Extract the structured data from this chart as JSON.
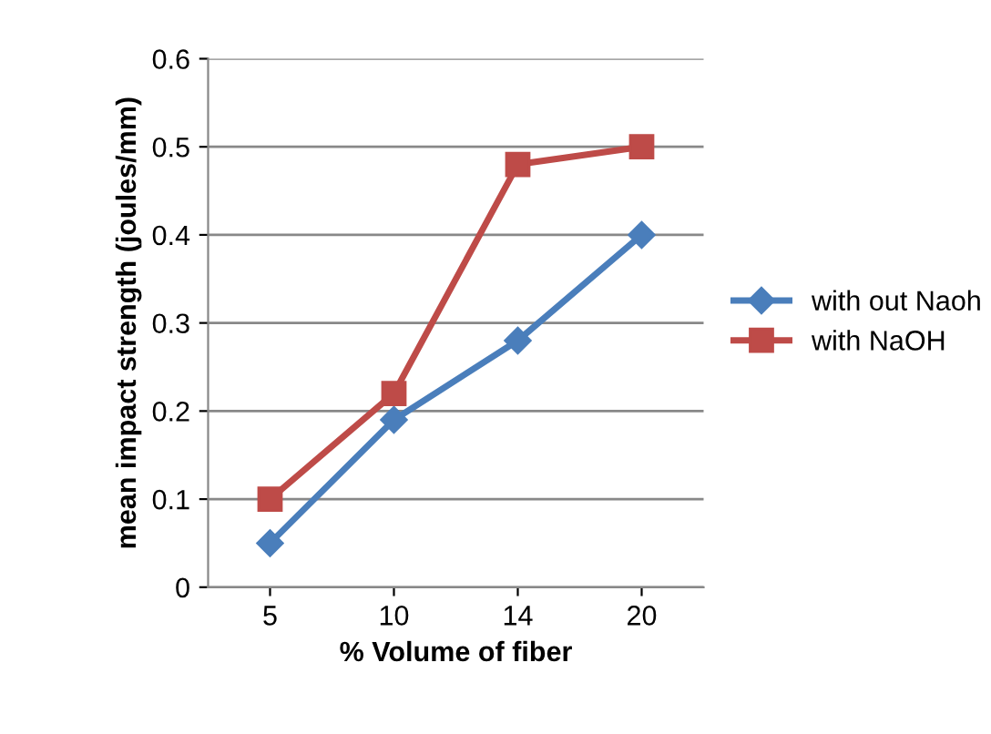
{
  "chart_data": {
    "type": "line",
    "xlabel": "% Volume of fiber",
    "ylabel": "mean impact strength (joules/mm)",
    "categories": [
      "5",
      "10",
      "14",
      "20"
    ],
    "series": [
      {
        "name": "with out Naoh",
        "color": "#4a7ebb",
        "values": [
          0.05,
          0.19,
          0.28,
          0.4
        ],
        "marker": "diamond"
      },
      {
        "name": "with NaOH",
        "color": "#be4b48",
        "values": [
          0.1,
          0.22,
          0.48,
          0.5
        ],
        "marker": "square"
      }
    ],
    "ylim": [
      0,
      0.6
    ],
    "yticks": [
      {
        "value": 0,
        "label": "0"
      },
      0.1,
      0.2,
      0.3,
      0.4,
      0.5,
      0.6
    ],
    "grid": "y",
    "legend": "right"
  }
}
